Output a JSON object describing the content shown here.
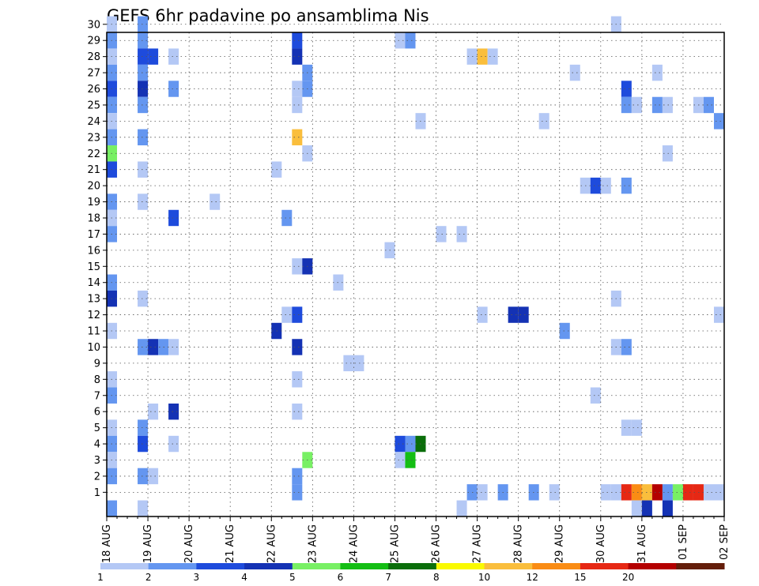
{
  "chart_data": {
    "type": "heatmap",
    "title": "GEFS 6hr padavine po ansamblima Nis",
    "x_ticks": [
      "18 AUG",
      "19 AUG",
      "20 AUG",
      "21 AUG",
      "22 AUG",
      "23 AUG",
      "24 AUG",
      "25 AUG",
      "26 AUG",
      "27 AUG",
      "28 AUG",
      "29 AUG",
      "30 AUG",
      "31 AUG",
      "01 SEP",
      "02 SEP"
    ],
    "y_ticks": [
      "1",
      "2",
      "3",
      "4",
      "5",
      "6",
      "7",
      "8",
      "9",
      "10",
      "11",
      "12",
      "13",
      "14",
      "15",
      "16",
      "17",
      "18",
      "19",
      "20",
      "21",
      "22",
      "23",
      "24",
      "25",
      "26",
      "27",
      "28",
      "29",
      "30"
    ],
    "legend": {
      "labels": [
        "1",
        "2",
        "3",
        "4",
        "5",
        "6",
        "7",
        "8",
        "10",
        "12",
        "15",
        "20"
      ],
      "colors": [
        "#b4c8f5",
        "#6496f0",
        "#1e4bdc",
        "#1432b4",
        "#78f064",
        "#14be14",
        "#0a6e0a",
        "#fafa00",
        "#fabe3c",
        "#fa8c14",
        "#e62814",
        "#b40000",
        "#641e0a"
      ]
    },
    "cells": [
      {
        "date": "18 AUG",
        "member": 30,
        "value": 1
      },
      {
        "date": "18 AUG",
        "member": 29,
        "value": 2
      },
      {
        "date": "18 AUG",
        "member": 28,
        "value": 1
      },
      {
        "date": "18 AUG",
        "member": 27,
        "value": 2
      },
      {
        "date": "18 AUG",
        "member": 26,
        "value": 3
      },
      {
        "date": "18 AUG",
        "member": 25,
        "value": 2
      },
      {
        "date": "18 AUG",
        "member": 24,
        "value": 1
      },
      {
        "date": "18 AUG",
        "member": 23,
        "value": 2
      },
      {
        "date": "18 AUG",
        "member": 22,
        "value": 5
      },
      {
        "date": "18 AUG",
        "member": 21,
        "value": 3
      },
      {
        "date": "18 AUG",
        "member": 19,
        "value": 2
      },
      {
        "date": "18 AUG",
        "member": 18,
        "value": 1
      },
      {
        "date": "18 AUG",
        "member": 17,
        "value": 2
      },
      {
        "date": "18 AUG",
        "member": 14,
        "value": 2
      },
      {
        "date": "18 AUG",
        "member": 13,
        "value": 4
      },
      {
        "date": "18 AUG",
        "member": 11,
        "value": 1
      },
      {
        "date": "18 AUG",
        "member": 8,
        "value": 1
      },
      {
        "date": "18 AUG",
        "member": 7,
        "value": 2
      },
      {
        "date": "18 AUG",
        "member": 5,
        "value": 1
      },
      {
        "date": "18 AUG",
        "member": 4,
        "value": 2
      },
      {
        "date": "18 AUG",
        "member": 3,
        "value": 1
      },
      {
        "date": "18 AUG",
        "member": 2,
        "value": 2
      },
      {
        "date": "18 AUG",
        "member": 0,
        "value": 2
      },
      {
        "date": "18 AUG 18Z",
        "member": 30,
        "value": 2
      },
      {
        "date": "18 AUG 18Z",
        "member": 29,
        "value": 2
      },
      {
        "date": "18 AUG 18Z",
        "member": 28,
        "value": 3
      },
      {
        "date": "18 AUG 18Z",
        "member": 27,
        "value": 2
      },
      {
        "date": "18 AUG 18Z",
        "member": 26,
        "value": 4
      },
      {
        "date": "18 AUG 18Z",
        "member": 25,
        "value": 2
      },
      {
        "date": "18 AUG 18Z",
        "member": 23,
        "value": 2
      },
      {
        "date": "18 AUG 18Z",
        "member": 21,
        "value": 1
      },
      {
        "date": "18 AUG 18Z",
        "member": 19,
        "value": 1
      },
      {
        "date": "18 AUG 18Z",
        "member": 13,
        "value": 1
      },
      {
        "date": "18 AUG 18Z",
        "member": 10,
        "value": 2
      },
      {
        "date": "18 AUG 18Z",
        "member": 5,
        "value": 2
      },
      {
        "date": "18 AUG 18Z",
        "member": 4,
        "value": 3
      },
      {
        "date": "18 AUG 18Z",
        "member": 2,
        "value": 2
      },
      {
        "date": "18 AUG 18Z",
        "member": 0,
        "value": 1
      },
      {
        "date": "19 AUG",
        "member": 28,
        "value": 3
      },
      {
        "date": "19 AUG",
        "member": 10,
        "value": 4
      },
      {
        "date": "19 AUG",
        "member": 6,
        "value": 1
      },
      {
        "date": "19 AUG",
        "member": 2,
        "value": 1
      },
      {
        "date": "19 AUG 06Z",
        "member": 10,
        "value": 2
      },
      {
        "date": "19 AUG 12Z",
        "member": 28,
        "value": 1
      },
      {
        "date": "19 AUG 12Z",
        "member": 26,
        "value": 2
      },
      {
        "date": "19 AUG 12Z",
        "member": 18,
        "value": 3
      },
      {
        "date": "19 AUG 12Z",
        "member": 10,
        "value": 1
      },
      {
        "date": "19 AUG 12Z",
        "member": 6,
        "value": 4
      },
      {
        "date": "19 AUG 12Z",
        "member": 4,
        "value": 1
      },
      {
        "date": "20 AUG 12Z",
        "member": 19,
        "value": 1
      },
      {
        "date": "22 AUG",
        "member": 21,
        "value": 1
      },
      {
        "date": "22 AUG",
        "member": 11,
        "value": 4
      },
      {
        "date": "22 AUG 06Z",
        "member": 18,
        "value": 2
      },
      {
        "date": "22 AUG 06Z",
        "member": 12,
        "value": 1
      },
      {
        "date": "22 AUG 12Z",
        "member": 29,
        "value": 3
      },
      {
        "date": "22 AUG 12Z",
        "member": 28,
        "value": 4
      },
      {
        "date": "22 AUG 12Z",
        "member": 26,
        "value": 1
      },
      {
        "date": "22 AUG 12Z",
        "member": 25,
        "value": 1
      },
      {
        "date": "22 AUG 12Z",
        "member": 23,
        "value": 11
      },
      {
        "date": "22 AUG 12Z",
        "member": 15,
        "value": 1
      },
      {
        "date": "22 AUG 12Z",
        "member": 12,
        "value": 3
      },
      {
        "date": "22 AUG 12Z",
        "member": 10,
        "value": 4
      },
      {
        "date": "22 AUG 12Z",
        "member": 8,
        "value": 1
      },
      {
        "date": "22 AUG 12Z",
        "member": 6,
        "value": 1
      },
      {
        "date": "22 AUG 12Z",
        "member": 2,
        "value": 2
      },
      {
        "date": "22 AUG 12Z",
        "member": 1,
        "value": 2
      },
      {
        "date": "22 AUG 18Z",
        "member": 27,
        "value": 2
      },
      {
        "date": "22 AUG 18Z",
        "member": 26,
        "value": 2
      },
      {
        "date": "22 AUG 18Z",
        "member": 22,
        "value": 1
      },
      {
        "date": "22 AUG 18Z",
        "member": 15,
        "value": 4
      },
      {
        "date": "22 AUG 18Z",
        "member": 3,
        "value": 5
      },
      {
        "date": "23 AUG 12Z",
        "member": 14,
        "value": 1
      },
      {
        "date": "23 AUG 18Z",
        "member": 9,
        "value": 1
      },
      {
        "date": "24 AUG",
        "member": 9,
        "value": 1
      },
      {
        "date": "24 AUG 18Z",
        "member": 16,
        "value": 1
      },
      {
        "date": "25 AUG",
        "member": 29,
        "value": 1
      },
      {
        "date": "25 AUG",
        "member": 4,
        "value": 3
      },
      {
        "date": "25 AUG",
        "member": 3,
        "value": 1
      },
      {
        "date": "25 AUG 06Z",
        "member": 29,
        "value": 2
      },
      {
        "date": "25 AUG 06Z",
        "member": 4,
        "value": 2
      },
      {
        "date": "25 AUG 06Z",
        "member": 3,
        "value": 6
      },
      {
        "date": "25 AUG 12Z",
        "member": 24,
        "value": 1
      },
      {
        "date": "25 AUG 12Z",
        "member": 4,
        "value": 7
      },
      {
        "date": "26 AUG",
        "member": 17,
        "value": 1
      },
      {
        "date": "26 AUG 12Z",
        "member": 17,
        "value": 1
      },
      {
        "date": "26 AUG 12Z",
        "member": 0,
        "value": 1
      },
      {
        "date": "26 AUG 18Z",
        "member": 28,
        "value": 1
      },
      {
        "date": "26 AUG 18Z",
        "member": 1,
        "value": 2
      },
      {
        "date": "27 AUG",
        "member": 28,
        "value": 10
      },
      {
        "date": "27 AUG",
        "member": 12,
        "value": 1
      },
      {
        "date": "27 AUG",
        "member": 1,
        "value": 1
      },
      {
        "date": "27 AUG 06Z",
        "member": 28,
        "value": 1
      },
      {
        "date": "27 AUG 12Z",
        "member": 1,
        "value": 2
      },
      {
        "date": "27 AUG 18Z",
        "member": 12,
        "value": 4
      },
      {
        "date": "28 AUG",
        "member": 12,
        "value": 4
      },
      {
        "date": "28 AUG 06Z",
        "member": 1,
        "value": 2
      },
      {
        "date": "28 AUG 12Z",
        "member": 24,
        "value": 1
      },
      {
        "date": "28 AUG 18Z",
        "member": 1,
        "value": 1
      },
      {
        "date": "29 AUG",
        "member": 11,
        "value": 2
      },
      {
        "date": "29 AUG 06Z",
        "member": 27,
        "value": 1
      },
      {
        "date": "29 AUG 12Z",
        "member": 20,
        "value": 1
      },
      {
        "date": "29 AUG 18Z",
        "member": 20,
        "value": 3
      },
      {
        "date": "29 AUG 18Z",
        "member": 7,
        "value": 1
      },
      {
        "date": "30 AUG",
        "member": 20,
        "value": 1
      },
      {
        "date": "30 AUG",
        "member": 1,
        "value": 1
      },
      {
        "date": "30 AUG 06Z",
        "member": 30,
        "value": 1
      },
      {
        "date": "30 AUG 06Z",
        "member": 13,
        "value": 1
      },
      {
        "date": "30 AUG 06Z",
        "member": 10,
        "value": 1
      },
      {
        "date": "30 AUG 06Z",
        "member": 1,
        "value": 1
      },
      {
        "date": "30 AUG 12Z",
        "member": 26,
        "value": 3
      },
      {
        "date": "30 AUG 12Z",
        "member": 25,
        "value": 2
      },
      {
        "date": "30 AUG 12Z",
        "member": 20,
        "value": 2
      },
      {
        "date": "30 AUG 12Z",
        "member": 10,
        "value": 2
      },
      {
        "date": "30 AUG 12Z",
        "member": 5,
        "value": 1
      },
      {
        "date": "30 AUG 12Z",
        "member": 1,
        "value": 15
      },
      {
        "date": "30 AUG 18Z",
        "member": 25,
        "value": 1
      },
      {
        "date": "30 AUG 18Z",
        "member": 5,
        "value": 1
      },
      {
        "date": "30 AUG 18Z",
        "member": 1,
        "value": 12
      },
      {
        "date": "30 AUG 18Z",
        "member": 0,
        "value": 1
      },
      {
        "date": "31 AUG",
        "member": 1,
        "value": 10
      },
      {
        "date": "31 AUG",
        "member": 0,
        "value": 4
      },
      {
        "date": "31 AUG 06Z",
        "member": 27,
        "value": 1
      },
      {
        "date": "31 AUG 06Z",
        "member": 25,
        "value": 2
      },
      {
        "date": "31 AUG 06Z",
        "member": 1,
        "value": 20
      },
      {
        "date": "31 AUG 12Z",
        "member": 25,
        "value": 1
      },
      {
        "date": "31 AUG 12Z",
        "member": 22,
        "value": 1
      },
      {
        "date": "31 AUG 12Z",
        "member": 1,
        "value": 2
      },
      {
        "date": "31 AUG 12Z",
        "member": 0,
        "value": 4
      },
      {
        "date": "31 AUG 18Z",
        "member": 1,
        "value": 5
      },
      {
        "date": "01 SEP",
        "member": 1,
        "value": 15
      },
      {
        "date": "01 SEP 06Z",
        "member": 25,
        "value": 1
      },
      {
        "date": "01 SEP 06Z",
        "member": 1,
        "value": 15
      },
      {
        "date": "01 SEP 12Z",
        "member": 25,
        "value": 2
      },
      {
        "date": "01 SEP 12Z",
        "member": 1,
        "value": 1
      },
      {
        "date": "01 SEP 18Z",
        "member": 24,
        "value": 2
      },
      {
        "date": "01 SEP 18Z",
        "member": 12,
        "value": 1
      },
      {
        "date": "01 SEP 18Z",
        "member": 1,
        "value": 1
      }
    ]
  }
}
